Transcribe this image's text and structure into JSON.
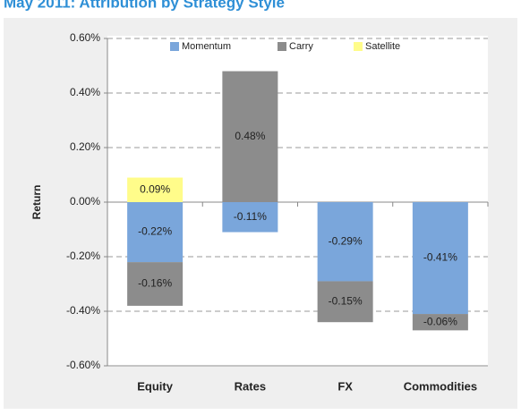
{
  "chart_data": {
    "type": "stacked_bar",
    "title": "May 2011: Attribution by Strategy Style",
    "ylabel": "Return",
    "categories": [
      "Equity",
      "Rates",
      "FX",
      "Commodities"
    ],
    "series": [
      {
        "name": "Momentum",
        "color": "#7aa6db",
        "values": [
          -0.22,
          -0.11,
          -0.29,
          -0.41
        ],
        "value_labels": [
          "-0.22%",
          "-0.11%",
          "-0.29%",
          "-0.41%"
        ]
      },
      {
        "name": "Carry",
        "color": "#8c8c8c",
        "values": [
          -0.16,
          0.48,
          -0.15,
          -0.06
        ],
        "value_labels": [
          "-0.16%",
          "0.48%",
          "-0.15%",
          "-0.06%"
        ]
      },
      {
        "name": "Satellite",
        "color": "#fffc8a",
        "values": [
          0.09,
          null,
          null,
          null
        ],
        "value_labels": [
          "0.09%",
          null,
          null,
          null
        ]
      }
    ],
    "ylim": [
      -0.6,
      0.6
    ],
    "yticks": [
      {
        "value": -0.6,
        "label": "-0.60%"
      },
      {
        "value": -0.4,
        "label": "-0.40%"
      },
      {
        "value": -0.2,
        "label": "-0.20%"
      },
      {
        "value": 0,
        "label": "0.00%"
      },
      {
        "value": 0.2,
        "label": "0.20%"
      },
      {
        "value": 0.4,
        "label": "0.40%"
      },
      {
        "value": 0.6,
        "label": "0.60%"
      }
    ],
    "grid": true,
    "legend": "top"
  }
}
